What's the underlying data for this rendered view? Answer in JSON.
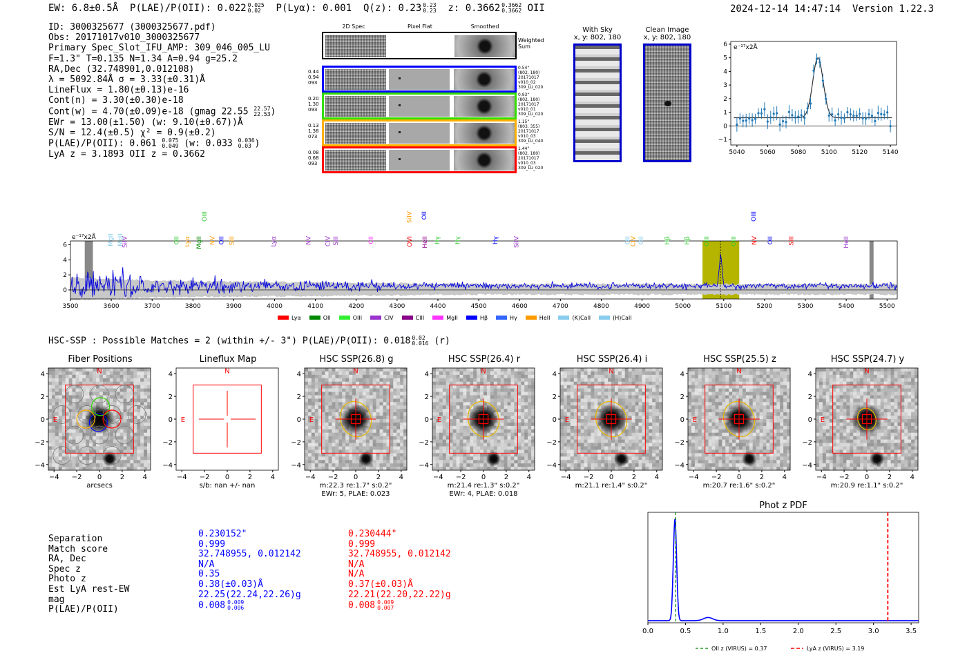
{
  "header": {
    "ew": "EW: 6.8±0.5Å",
    "plae_label": "P(LAE)/P(OII): 0.022",
    "plae_hi": "0.025",
    "plae_lo": "0.02",
    "plya": "P(Lyα): 0.001",
    "qz_label": "Q(z): 0.23",
    "qz_hi": "0.23",
    "qz_lo": "0.23",
    "z_label": "z: 0.3662",
    "z_hi": "0.3662",
    "z_lo": "0.3662",
    "z_line": "OII",
    "datetime": "2024-12-14 14:47:14",
    "version": "Version 1.22.3"
  },
  "info": {
    "id": "ID: 3000325677 (3000325677.pdf)",
    "obs": "Obs: 20171017v010_3000325677",
    "primary": "Primary Spec_Slot_IFU_AMP: 309_046_005_LU",
    "fit": "F=1.3\"  T=0.135  N=1.34  A=0.94  g=25.2",
    "radec": "RA,Dec (32.748901,0.012108)",
    "lambda": "λ = 5092.84Å  σ = 3.33(±0.31)Å",
    "lineflux": "LineFlux = 1.80(±0.13)e-16",
    "contn": "Cont(n) = 3.30(±0.30)e-18",
    "contw": "Cont(w) = 4.70(±0.09)e-18 (gmag 22.55",
    "contw_hi": "22.57",
    "contw_lo": "22.53",
    "contw_end": ")",
    "ewr": "EWr = 13.00(±1.50) (w: 9.10(±0.67))Å",
    "sn": "S/N = 12.4(±0.5)  χ² = 0.9(±0.2)",
    "plae": "P(LAE)/P(OII): 0.061",
    "plae_hi": "0.075",
    "plae_lo": "0.049",
    "plae_w": "(w: 0.033",
    "plae_w_hi": "0.036",
    "plae_w_lo": "0.03",
    "plae_w_end": ")",
    "lyaz": "LyA z = 3.1893  OII z = 0.3662"
  },
  "cutouts": {
    "col_2d": "2D Spec",
    "col_flat": "Pixel Flat",
    "col_smooth": "Smoothed",
    "weighted": "Weighted Sum",
    "rows": [
      {
        "left": "0.44\n0.94\n093",
        "right": "0.54\"\n(802, 180)\n20171017\nv010_02\n309_LU_020",
        "color": "#0000ff"
      },
      {
        "left": "0.20\n1.30\n093",
        "right": "0.93\"\n(802, 180)\n20171017\nv010_01\n309_LU_020",
        "color": "#33dd00"
      },
      {
        "left": "0.13\n1.38\n073",
        "right": "1.15\"\n(803, 355)\n20171017\nv010_03\n309_LU_040",
        "color": "#ffb000"
      },
      {
        "left": "0.08\n0.68\n093",
        "right": "1.44\"\n(802, 180)\n20171017\nv010_03\n309_LU_020",
        "color": "#ff0000"
      }
    ],
    "sky_title": "With Sky",
    "sky_coord": "x, y: 802, 180",
    "clean_title": "Clean Image",
    "clean_coord": "x, y: 802, 180"
  },
  "colors": {
    "accent_blue": "#0000ff",
    "accent_red": "#ff0000",
    "fit_blue": "#1f77b4",
    "highlight": "#b5b500"
  },
  "linefit_chart": {
    "type": "line",
    "ylabel": "e⁻¹⁷x2Å",
    "x_ticks": [
      "5040",
      "5060",
      "5080",
      "5100",
      "5120",
      "5140"
    ],
    "y_ticks": [
      "-1",
      "0",
      "1",
      "2",
      "3",
      "4",
      "5",
      "6"
    ],
    "xlim": [
      5036,
      5144
    ],
    "ylim": [
      -1.4,
      6.2
    ]
  },
  "spectrum_chart": {
    "type": "line",
    "ylabel": "e⁻¹⁷x2Å",
    "x_ticks": [
      "3500",
      "3600",
      "3700",
      "3800",
      "3900",
      "4000",
      "4100",
      "4200",
      "4300",
      "4400",
      "4500",
      "4600",
      "4700",
      "4800",
      "4900",
      "5000",
      "5100",
      "5200",
      "5300",
      "5400",
      "5500"
    ],
    "y_ticks": [
      "0",
      "2",
      "4",
      "6"
    ],
    "xlim": [
      3500,
      5525
    ],
    "ylim": [
      -1.2,
      6.5
    ],
    "highlight_range": [
      5048,
      5138
    ],
    "line_marker": 5092,
    "line_labels": [
      {
        "t": "MgII",
        "x": 3598,
        "c": "#88ccee",
        "row": 2
      },
      {
        "t": "MgII",
        "x": 3622,
        "c": "#88ccee",
        "row": 2
      },
      {
        "t": "SiIV",
        "x": 3633,
        "c": "#9933cc",
        "row": 3
      },
      {
        "t": "Lyα",
        "x": 3786,
        "c": "#ff9900",
        "row": 3
      },
      {
        "t": "OII",
        "x": 3760,
        "c": "#33cc33",
        "row": 3
      },
      {
        "t": "MgII",
        "x": 3815,
        "c": "#008800",
        "row": 3
      },
      {
        "t": "OIII",
        "x": 3828,
        "c": "#33cc33",
        "row": 1
      },
      {
        "t": "NV",
        "x": 3848,
        "c": "#ff9900",
        "row": 3
      },
      {
        "t": "OII",
        "x": 3870,
        "c": "#0000ff",
        "row": 3
      },
      {
        "t": "SiII",
        "x": 3895,
        "c": "#ff9900",
        "row": 3
      },
      {
        "t": "Lyα",
        "x": 3997,
        "c": "#9933cc",
        "row": 3
      },
      {
        "t": "NV",
        "x": 4083,
        "c": "#9933cc",
        "row": 3
      },
      {
        "t": "CIV",
        "x": 4130,
        "c": "#9933cc",
        "row": 3
      },
      {
        "t": "SiII",
        "x": 4150,
        "c": "#9933cc",
        "row": 3
      },
      {
        "t": "CII",
        "x": 4236,
        "c": "#ff33ff",
        "row": 3
      },
      {
        "t": "SiIV",
        "x": 4330,
        "c": "#ff9900",
        "row": 1
      },
      {
        "t": "OVI",
        "x": 4331,
        "c": "#ff0000",
        "row": 3
      },
      {
        "t": "HeII",
        "x": 4368,
        "c": "#990099",
        "row": 3
      },
      {
        "t": "OII",
        "x": 4366,
        "c": "#0000ff",
        "row": 1
      },
      {
        "t": "Hγ",
        "x": 4398,
        "c": "#33cc33",
        "row": 3
      },
      {
        "t": "Hγ",
        "x": 4448,
        "c": "#33cc33",
        "row": 3
      },
      {
        "t": "Hγ",
        "x": 4540,
        "c": "#0000ff",
        "row": 3
      },
      {
        "t": "SiIV",
        "x": 4592,
        "c": "#9933cc",
        "row": 3
      },
      {
        "t": "OII",
        "x": 4864,
        "c": "#88ccee",
        "row": 3
      },
      {
        "t": "CIV",
        "x": 4878,
        "c": "#ff9900",
        "row": 3
      },
      {
        "t": "OII",
        "x": 4897,
        "c": "#88ccee",
        "row": 3
      },
      {
        "t": "Hβ",
        "x": 4962,
        "c": "#33cc33",
        "row": 3
      },
      {
        "t": "Hβ",
        "x": 5010,
        "c": "#33cc33",
        "row": 3
      },
      {
        "t": "OIII",
        "x": 5058,
        "c": "#33cc33",
        "row": 3
      },
      {
        "t": "OIII",
        "x": 5124,
        "c": "#33cc33",
        "row": 3
      },
      {
        "t": "NV",
        "x": 5175,
        "c": "#ff0000",
        "row": 3
      },
      {
        "t": "OIII",
        "x": 5173,
        "c": "#0000ff",
        "row": 1
      },
      {
        "t": "OII",
        "x": 5214,
        "c": "#0000ff",
        "row": 3
      },
      {
        "t": "SiII",
        "x": 5265,
        "c": "#ff0000",
        "row": 3
      },
      {
        "t": "HeII",
        "x": 5400,
        "c": "#9933cc",
        "row": 3
      }
    ],
    "legend": [
      {
        "t": "Lyα",
        "c": "#ff0000"
      },
      {
        "t": "OII",
        "c": "#008800"
      },
      {
        "t": "OIII",
        "c": "#33ee33"
      },
      {
        "t": "CIV",
        "c": "#9933cc"
      },
      {
        "t": "CIII",
        "c": "#880088"
      },
      {
        "t": "MgII",
        "c": "#ff33ff"
      },
      {
        "t": "Hβ",
        "c": "#0000ff"
      },
      {
        "t": "Hγ",
        "c": "#3366ff"
      },
      {
        "t": "HeII",
        "c": "#ff9900"
      },
      {
        "t": "(K)CaII",
        "c": "#88ccee"
      },
      {
        "t": "(H)CaII",
        "c": "#88ccee"
      }
    ]
  },
  "hsc": {
    "title": "HSC-SSP : Possible Matches = 2 (within +/- 3\")  P(LAE)/P(OII): 0.018",
    "title_hi": "0.02",
    "title_lo": "0.016",
    "title_end": "(r)",
    "stamps": [
      {
        "title": "Fiber Positions",
        "xlabel": "arcsecs",
        "xlabel2": "",
        "kind": "fiber"
      },
      {
        "title": "Lineflux Map",
        "xlabel": "s/b: nan +/- nan",
        "xlabel2": "",
        "kind": "lineflux"
      },
      {
        "title": "HSC SSP(26.8) g",
        "xlabel": "m:22.3  re:1.7\"  s:0.2\"",
        "xlabel2": "EWr: 5, PLAE: 0.023",
        "kind": "hsc"
      },
      {
        "title": "HSC SSP(26.4) r",
        "xlabel": "m:21.4  re:1.3\"  s:0.2\"",
        "xlabel2": "EWr: 4, PLAE: 0.018",
        "kind": "hsc"
      },
      {
        "title": "HSC SSP(26.4) i",
        "xlabel": "m:21.1  re:1.4\"  s:0.2\"",
        "xlabel2": "",
        "kind": "hsc"
      },
      {
        "title": "HSC SSP(25.5) z",
        "xlabel": "m:20.7  re:1.6\"  s:0.2\"",
        "xlabel2": "",
        "kind": "hsc"
      },
      {
        "title": "HSC SSP(24.7) y",
        "xlabel": "m:20.9  re:1.1\"  s:0.2\"",
        "xlabel2": "",
        "kind": "hsc"
      }
    ],
    "axis_ticks_x": [
      "−4",
      "−2",
      "0",
      "2",
      "4"
    ],
    "axis_ticks_y": [
      "4",
      "2",
      "0",
      "−2",
      "−4"
    ],
    "north": "N",
    "east": "E"
  },
  "match_table": {
    "labels": [
      "Separation",
      "Match score",
      "RA, Dec",
      "Spec z",
      "Photo z",
      "Est LyA rest-EW",
      "mag",
      "P(LAE)/P(OII)"
    ],
    "col1": [
      "0.230152\"",
      "0.999",
      "32.748955, 0.012142",
      "N/A",
      "0.35",
      "0.38(±0.03)Å",
      "22.25(22.24,22.26)g",
      "0.008"
    ],
    "col1_plae_hi": "0.009",
    "col1_plae_lo": "0.006",
    "col2": [
      "0.230444\"",
      "0.999",
      "32.748955, 0.012142",
      "N/A",
      "N/A",
      "0.37(±0.03)Å",
      "22.21(22.20,22.22)g",
      "0.008"
    ],
    "col2_plae_hi": "0.009",
    "col2_plae_lo": "0.007"
  },
  "photz_chart": {
    "type": "line",
    "title": "Phot z PDF",
    "x_ticks": [
      "0.0",
      "0.5",
      "1.0",
      "1.5",
      "2.0",
      "2.5",
      "3.0",
      "3.5"
    ],
    "xlim": [
      0.0,
      3.6
    ],
    "oii_z": 0.37,
    "lya_z": 3.19,
    "legend_oii": "OII z (VIRUS) = 0.37",
    "legend_lya": "LyA z (VIRUS) = 3.19"
  }
}
